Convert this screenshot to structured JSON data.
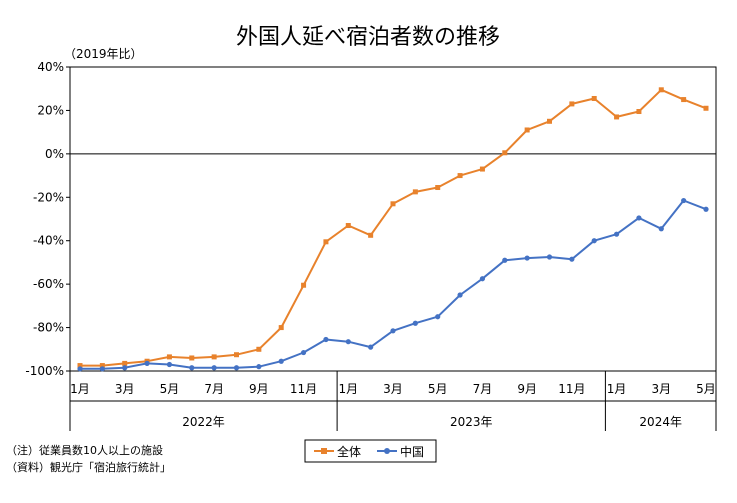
{
  "chart_data": {
    "type": "line",
    "title": "外国人延べ宿泊者数の推移",
    "unit_label": "（2019年比）",
    "ylim": [
      -100,
      40
    ],
    "y_ticks": [
      "40%",
      "20%",
      "0%",
      "-20%",
      "-40%",
      "-60%",
      "-80%",
      "-100%"
    ],
    "y_tick_values": [
      40,
      20,
      0,
      -20,
      -40,
      -60,
      -80,
      -100
    ],
    "x": [
      "2022-01",
      "2022-02",
      "2022-03",
      "2022-04",
      "2022-05",
      "2022-06",
      "2022-07",
      "2022-08",
      "2022-09",
      "2022-10",
      "2022-11",
      "2022-12",
      "2023-01",
      "2023-02",
      "2023-03",
      "2023-04",
      "2023-05",
      "2023-06",
      "2023-07",
      "2023-08",
      "2023-09",
      "2023-10",
      "2023-11",
      "2023-12",
      "2024-01",
      "2024-02",
      "2024-03",
      "2024-04",
      "2024-05"
    ],
    "month_labels": [
      {
        "label": "1月",
        "month": "2022-01"
      },
      {
        "label": "3月",
        "month": "2022-03"
      },
      {
        "label": "5月",
        "month": "2022-05"
      },
      {
        "label": "7月",
        "month": "2022-07"
      },
      {
        "label": "9月",
        "month": "2022-09"
      },
      {
        "label": "11月",
        "month": "2022-11"
      },
      {
        "label": "1月",
        "month": "2023-01"
      },
      {
        "label": "3月",
        "month": "2023-03"
      },
      {
        "label": "5月",
        "month": "2023-05"
      },
      {
        "label": "7月",
        "month": "2023-07"
      },
      {
        "label": "9月",
        "month": "2023-09"
      },
      {
        "label": "11月",
        "month": "2023-11"
      },
      {
        "label": "1月",
        "month": "2024-01"
      },
      {
        "label": "3月",
        "month": "2024-03"
      },
      {
        "label": "5月",
        "month": "2024-05"
      }
    ],
    "year_groups": [
      {
        "label": "2022年",
        "start": "2022-01",
        "end": "2022-12"
      },
      {
        "label": "2023年",
        "start": "2023-01",
        "end": "2023-12"
      },
      {
        "label": "2024年",
        "start": "2024-01",
        "end": "2024-05"
      }
    ],
    "series": [
      {
        "name": "全体",
        "color": "#E8822C",
        "values": [
          -97.5,
          -97.5,
          -96.5,
          -95.5,
          -93.5,
          -94,
          -93.5,
          -92.5,
          -90,
          -80,
          -60.5,
          -40.5,
          -33,
          -37.5,
          -23,
          -17.5,
          -15.5,
          -10,
          -7,
          0.5,
          11,
          15,
          23,
          25.5,
          17,
          19.5,
          29.5,
          25,
          21
        ]
      },
      {
        "name": "中国",
        "color": "#4472C4",
        "values": [
          -99,
          -99,
          -98.5,
          -96.5,
          -97,
          -98.5,
          -98.5,
          -98.5,
          -98,
          -95.5,
          -91.5,
          -85.5,
          -86.5,
          -89,
          -81.5,
          -78,
          -75,
          -65,
          -57.5,
          -49,
          -48,
          -47.5,
          -48.5,
          -40,
          -37,
          -29.5,
          -34.5,
          -21.5,
          -25.5
        ]
      }
    ],
    "grid": false,
    "legend_position": "bottom-center",
    "notes": [
      "（注）従業員数10人以上の施設",
      "（資料）観光庁「宿泊旅行統計」"
    ]
  }
}
